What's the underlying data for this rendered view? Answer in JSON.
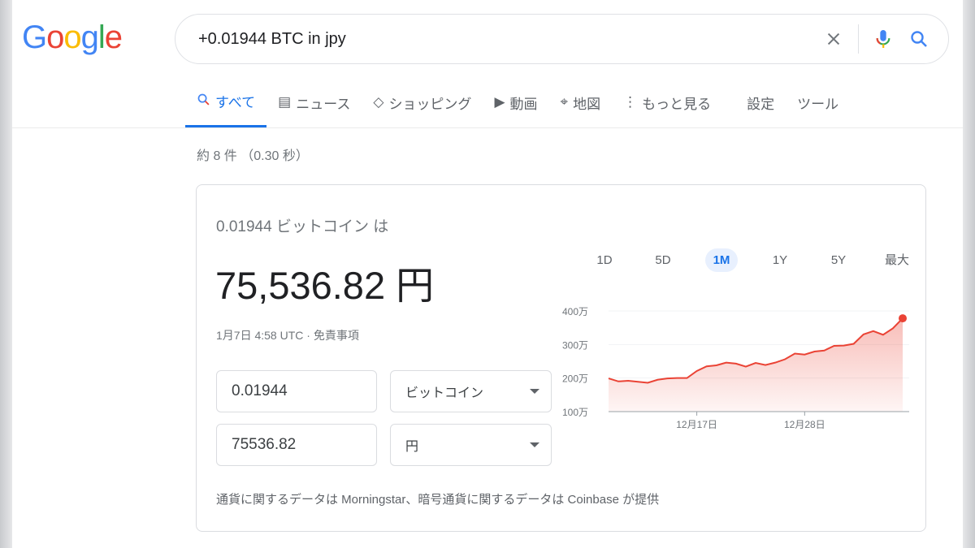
{
  "logo": "Google",
  "search": {
    "query": "+0.01944 BTC in jpy"
  },
  "tabs": [
    {
      "label": "すべて",
      "icon": "search-icon",
      "active": true
    },
    {
      "label": "ニュース",
      "icon": "news-icon"
    },
    {
      "label": "ショッピング",
      "icon": "tag-icon"
    },
    {
      "label": "動画",
      "icon": "play-icon"
    },
    {
      "label": "地図",
      "icon": "map-pin-icon"
    },
    {
      "label": "もっと見る",
      "icon": "more-vert-icon"
    },
    {
      "label": "設定"
    },
    {
      "label": "ツール"
    }
  ],
  "stats": "約 8 件 （0.30 秒）",
  "card": {
    "label": "0.01944 ビットコイン は",
    "result": "75,536.82 円",
    "date": "1月7日 4:58 UTC · 免責事項",
    "from_amount": "0.01944",
    "from_unit": "ビットコイン",
    "to_amount": "75536.82",
    "to_unit": "円",
    "source": "通貨に関するデータは Morningstar、暗号通貨に関するデータは Coinbase が提供",
    "ranges": [
      "1D",
      "5D",
      "1M",
      "1Y",
      "5Y",
      "最大"
    ],
    "active_range": "1M"
  },
  "chart_data": {
    "type": "area",
    "color": "#ea4335",
    "x_ticks": [
      "12月17日",
      "12月28日"
    ],
    "y_ticks": [
      "100万",
      "200万",
      "300万",
      "400万"
    ],
    "ylim": [
      100,
      400
    ],
    "y_unit": "万",
    "x": [
      "12/8",
      "12/9",
      "12/10",
      "12/11",
      "12/12",
      "12/13",
      "12/14",
      "12/15",
      "12/16",
      "12/17",
      "12/18",
      "12/19",
      "12/20",
      "12/21",
      "12/22",
      "12/23",
      "12/24",
      "12/25",
      "12/26",
      "12/27",
      "12/28",
      "12/29",
      "12/30",
      "12/31",
      "1/1",
      "1/2",
      "1/3",
      "1/4",
      "1/5",
      "1/6",
      "1/7"
    ],
    "values": [
      199,
      190,
      192,
      189,
      186,
      195,
      199,
      200,
      200,
      221,
      235,
      238,
      246,
      243,
      234,
      245,
      239,
      246,
      256,
      273,
      270,
      279,
      282,
      296,
      297,
      302,
      330,
      340,
      329,
      348,
      378
    ]
  }
}
